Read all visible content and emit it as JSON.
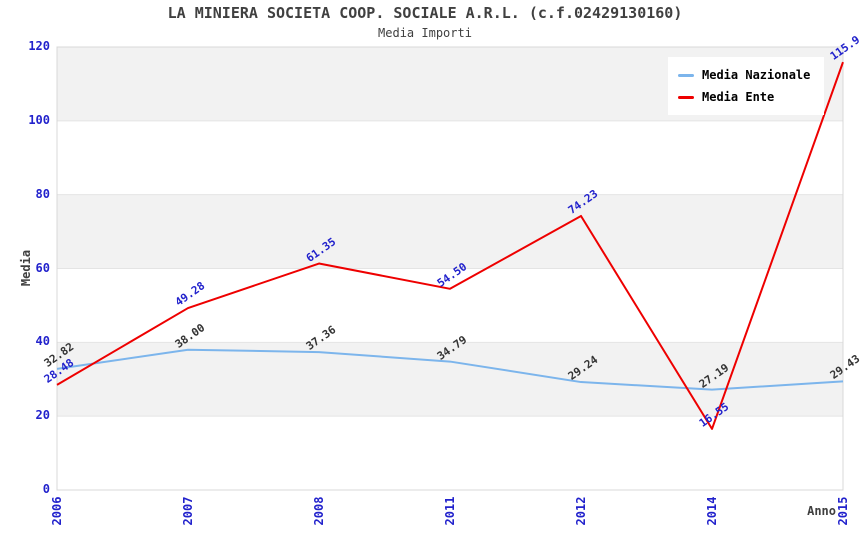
{
  "title": "LA MINIERA SOCIETA COOP. SOCIALE A.R.L. (c.f.02429130160)",
  "subtitle": "Media Importi",
  "chart_data": {
    "type": "line",
    "categories": [
      "2006",
      "2007",
      "2008",
      "2011",
      "2012",
      "2014",
      "2015"
    ],
    "series": [
      {
        "name": "Media Nazionale",
        "color": "#7cb5ec",
        "label_color": "#333333",
        "values": [
          32.82,
          38.0,
          37.36,
          34.79,
          29.24,
          27.19,
          29.43
        ],
        "labels": [
          "32.82",
          "38.00",
          "37.36",
          "34.79",
          "29.24",
          "27.19",
          "29.43"
        ]
      },
      {
        "name": "Media Ente",
        "color": "#ee0000",
        "label_color": "#2222cc",
        "values": [
          28.48,
          49.28,
          61.35,
          54.5,
          74.23,
          16.55,
          115.9
        ],
        "labels": [
          "28.48",
          "49.28",
          "61.35",
          "54.50",
          "74.23",
          "16.55",
          "115.9"
        ]
      }
    ],
    "xlabel": "Anno",
    "ylabel": "Media",
    "ylim": [
      0,
      120
    ],
    "yticks": [
      0,
      20,
      40,
      60,
      80,
      100,
      120
    ],
    "band_ranges": [
      [
        20,
        40
      ],
      [
        60,
        80
      ],
      [
        100,
        120
      ]
    ],
    "legend_position": "top-right",
    "grid": true
  },
  "colors": {
    "tick_label": "#2222cc",
    "band": "#f2f2f2",
    "grid_line": "#e4e4e4",
    "plot_border": "#d8d8d8",
    "text": "#404040"
  }
}
